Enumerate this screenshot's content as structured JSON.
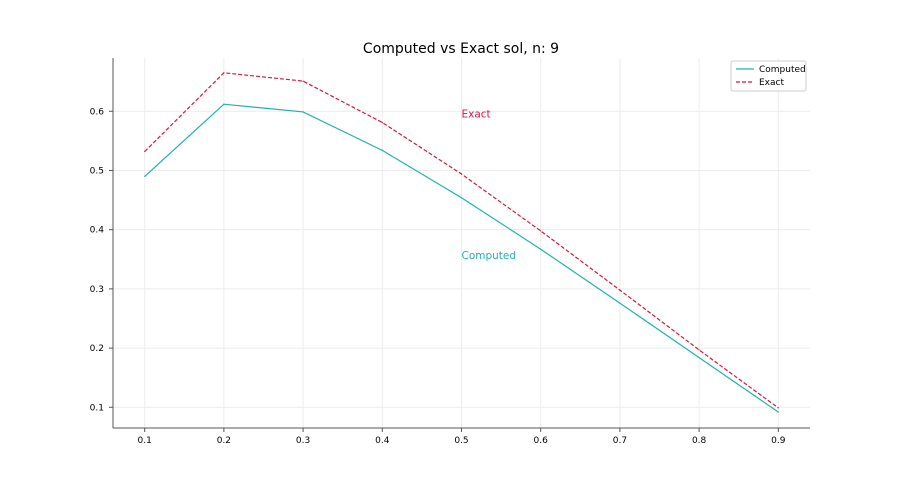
{
  "chart_data": {
    "type": "line",
    "title": "Computed vs Exact sol, n: 9",
    "xlabel": "",
    "ylabel": "",
    "x": [
      0.1,
      0.2,
      0.3,
      0.4,
      0.5,
      0.6,
      0.7,
      0.8,
      0.9
    ],
    "xlim": [
      0.06,
      0.94
    ],
    "ylim": [
      0.065,
      0.69
    ],
    "xticks": [
      "0.1",
      "0.2",
      "0.3",
      "0.4",
      "0.5",
      "0.6",
      "0.7",
      "0.8",
      "0.9"
    ],
    "yticks": [
      "0.1",
      "0.2",
      "0.3",
      "0.4",
      "0.5",
      "0.6"
    ],
    "grid": true,
    "legend_position": "top-right",
    "series": [
      {
        "name": "Computed",
        "color": "#20b2aa",
        "style": "solid",
        "values": [
          0.49,
          0.612,
          0.599,
          0.534,
          0.454,
          0.367,
          0.276,
          0.184,
          0.092
        ]
      },
      {
        "name": "Exact",
        "color": "#dc143c",
        "style": "dashed",
        "values": [
          0.532,
          0.665,
          0.651,
          0.581,
          0.494,
          0.398,
          0.298,
          0.197,
          0.099
        ]
      }
    ],
    "annotations": [
      {
        "text": "Exact",
        "x": 0.5,
        "y": 0.596,
        "color": "#dc143c"
      },
      {
        "text": "Computed",
        "x": 0.5,
        "y": 0.357,
        "color": "#20b2aa"
      }
    ]
  }
}
